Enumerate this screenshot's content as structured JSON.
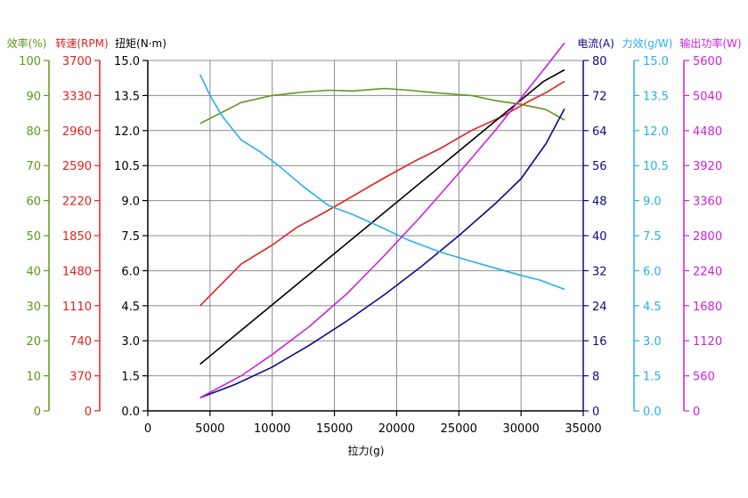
{
  "chart_data": {
    "type": "line",
    "xlabel": "拉力(g)",
    "x_ticks": [
      0,
      5000,
      10000,
      15000,
      20000,
      25000,
      30000,
      35000
    ],
    "xlim": [
      0,
      35000
    ],
    "grid": true,
    "axes": [
      {
        "id": "eff",
        "label": "效率(%)",
        "color": "#5b9a1a",
        "side": "left",
        "ticks": [
          0,
          10,
          20,
          30,
          40,
          50,
          60,
          70,
          80,
          90,
          100
        ],
        "ylim": [
          0,
          100
        ]
      },
      {
        "id": "rpm",
        "label": "转速(RPM)",
        "color": "#e6201e",
        "side": "left",
        "ticks": [
          0,
          370,
          740,
          1110,
          1480,
          1850,
          2220,
          2590,
          2960,
          3330,
          3700
        ],
        "ylim": [
          0,
          3700
        ]
      },
      {
        "id": "torque",
        "label": "扭矩(N·m)",
        "color": "#000000",
        "side": "left",
        "ticks": [
          "0.0",
          "1.5",
          "3.0",
          "4.5",
          "6.0",
          "7.5",
          "9.0",
          "10.5",
          "12.0",
          "13.5",
          "15.0"
        ],
        "ylim": [
          0,
          15
        ]
      },
      {
        "id": "current",
        "label": "电流(A)",
        "color": "#0a0a8c",
        "side": "right",
        "ticks": [
          0,
          8,
          16,
          24,
          32,
          40,
          48,
          56,
          64,
          72,
          80
        ],
        "ylim": [
          0,
          80
        ]
      },
      {
        "id": "force_eff",
        "label": "力效(g/W)",
        "color": "#2ab0e8",
        "side": "right",
        "ticks": [
          "0.0",
          "1.5",
          "3.0",
          "4.5",
          "6.0",
          "7.5",
          "9.0",
          "10.5",
          "12.0",
          "13.5",
          "15.0"
        ],
        "ylim": [
          0,
          15
        ]
      },
      {
        "id": "power",
        "label": "输出功率(W)",
        "color": "#cc22dd",
        "side": "right",
        "ticks": [
          0,
          560,
          1120,
          1680,
          2240,
          2800,
          3360,
          3920,
          4480,
          5040,
          5600
        ],
        "ylim": [
          0,
          5600
        ]
      }
    ],
    "series": [
      {
        "axis": "eff",
        "color": "#5b9a1a",
        "points": [
          [
            4200,
            82
          ],
          [
            7500,
            88
          ],
          [
            10000,
            90
          ],
          [
            12500,
            91
          ],
          [
            14500,
            91.5
          ],
          [
            16500,
            91.3
          ],
          [
            19000,
            92
          ],
          [
            21000,
            91.5
          ],
          [
            23000,
            90.8
          ],
          [
            26000,
            90
          ],
          [
            28000,
            88.5
          ],
          [
            30000,
            87.5
          ],
          [
            32000,
            86
          ],
          [
            33500,
            83
          ]
        ]
      },
      {
        "axis": "rpm",
        "color": "#e6201e",
        "points": [
          [
            4200,
            1110
          ],
          [
            7500,
            1550
          ],
          [
            10000,
            1750
          ],
          [
            12000,
            1940
          ],
          [
            14000,
            2080
          ],
          [
            16500,
            2270
          ],
          [
            19000,
            2460
          ],
          [
            21500,
            2640
          ],
          [
            23500,
            2770
          ],
          [
            26000,
            2960
          ],
          [
            28500,
            3110
          ],
          [
            30500,
            3260
          ],
          [
            32000,
            3360
          ],
          [
            33500,
            3480
          ]
        ]
      },
      {
        "axis": "torque",
        "color": "#000000",
        "points": [
          [
            4200,
            2.0
          ],
          [
            31800,
            14.1
          ],
          [
            33500,
            14.6
          ]
        ]
      },
      {
        "axis": "current",
        "color": "#0a0a8c",
        "points": [
          [
            4200,
            3
          ],
          [
            7000,
            6
          ],
          [
            10000,
            10
          ],
          [
            13000,
            15
          ],
          [
            16000,
            20.5
          ],
          [
            19000,
            26.5
          ],
          [
            22000,
            33
          ],
          [
            25000,
            40
          ],
          [
            28000,
            47.5
          ],
          [
            30000,
            53
          ],
          [
            32000,
            61
          ],
          [
            33500,
            69
          ]
        ]
      },
      {
        "axis": "force_eff",
        "color": "#2ab0e8",
        "points": [
          [
            4200,
            14.4
          ],
          [
            5000,
            13.5
          ],
          [
            6000,
            12.6
          ],
          [
            7500,
            11.6
          ],
          [
            9000,
            11.1
          ],
          [
            10500,
            10.5
          ],
          [
            12500,
            9.6
          ],
          [
            14500,
            8.8
          ],
          [
            16500,
            8.4
          ],
          [
            19000,
            7.8
          ],
          [
            21000,
            7.3
          ],
          [
            23500,
            6.8
          ],
          [
            26000,
            6.4
          ],
          [
            28000,
            6.1
          ],
          [
            30000,
            5.8
          ],
          [
            31500,
            5.6
          ],
          [
            33500,
            5.2
          ]
        ]
      },
      {
        "axis": "power",
        "color": "#cc22dd",
        "points": [
          [
            4200,
            210
          ],
          [
            7500,
            560
          ],
          [
            10000,
            900
          ],
          [
            13000,
            1350
          ],
          [
            16000,
            1870
          ],
          [
            19000,
            2480
          ],
          [
            22000,
            3120
          ],
          [
            25000,
            3800
          ],
          [
            28000,
            4500
          ],
          [
            30000,
            5000
          ],
          [
            32000,
            5500
          ],
          [
            33500,
            5880
          ]
        ]
      }
    ]
  }
}
